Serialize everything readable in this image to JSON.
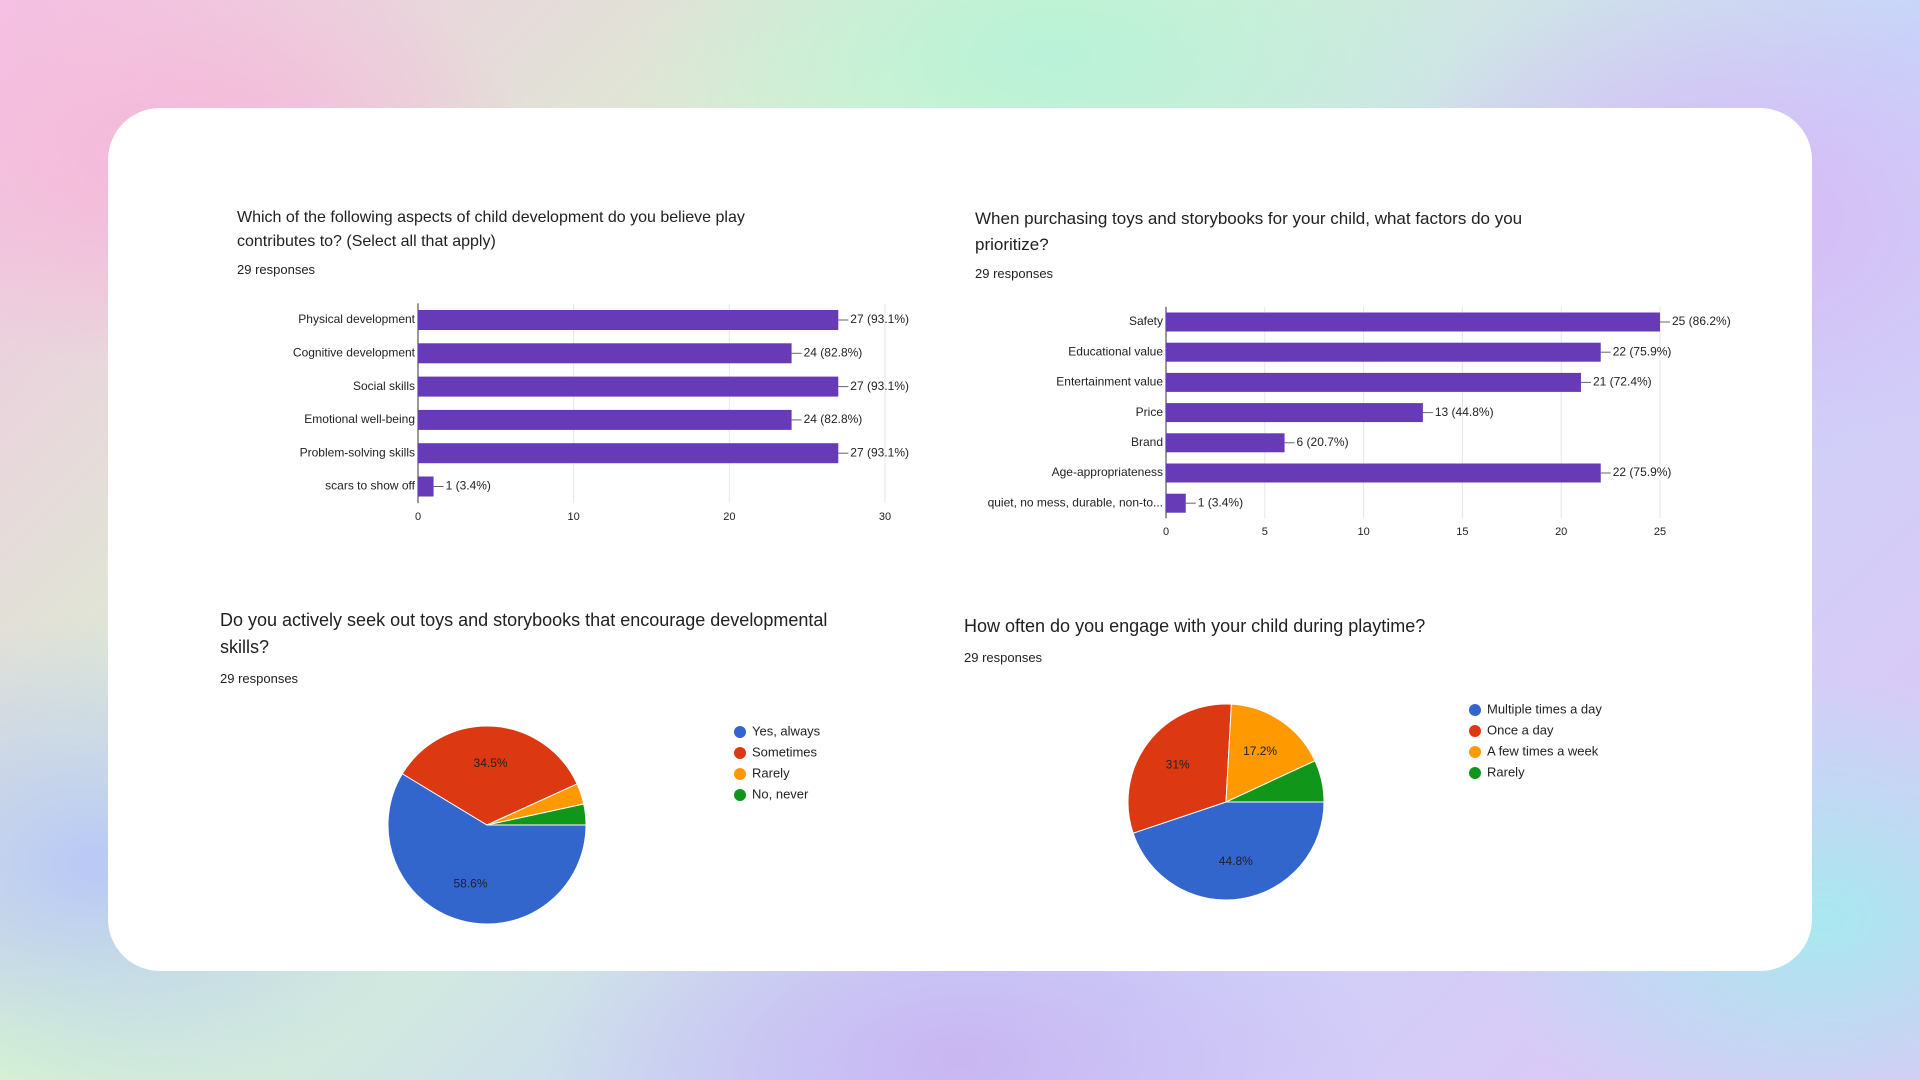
{
  "chart_data": [
    {
      "type": "bar",
      "title": "Which of the following aspects of child development do you believe play contributes to? (Select all that apply)",
      "subtitle": "29 responses",
      "categories": [
        "Physical development",
        "Cognitive development",
        "Social skills",
        "Emotional well-being",
        "Problem-solving skills",
        "scars to show off"
      ],
      "values": [
        27,
        24,
        27,
        24,
        27,
        1
      ],
      "value_labels": [
        "27 (93.1%)",
        "24 (82.8%)",
        "27 (93.1%)",
        "24 (82.8%)",
        "27 (93.1%)",
        "1 (3.4%)"
      ],
      "color": "#673ab7",
      "xlim": [
        0,
        30
      ],
      "xticks": [
        0,
        10,
        20,
        30
      ],
      "grid": true
    },
    {
      "type": "bar",
      "title": "When purchasing toys and storybooks for your child, what factors do you prioritize?",
      "subtitle": "29 responses",
      "categories": [
        "Safety",
        "Educational value",
        "Entertainment value",
        "Price",
        "Brand",
        "Age-appropriateness",
        "quiet, no mess, durable, non-to..."
      ],
      "values": [
        25,
        22,
        21,
        13,
        6,
        22,
        1
      ],
      "value_labels": [
        "25 (86.2%)",
        "22 (75.9%)",
        "21 (72.4%)",
        "13 (44.8%)",
        "6 (20.7%)",
        "22 (75.9%)",
        "1 (3.4%)"
      ],
      "color": "#673ab7",
      "xlim": [
        0,
        25
      ],
      "xticks": [
        0,
        5,
        10,
        15,
        20,
        25
      ],
      "grid": true
    },
    {
      "type": "pie",
      "title": "Do you actively seek out toys and storybooks that encourage developmental skills?",
      "subtitle": "29 responses",
      "categories": [
        "Yes, always",
        "Sometimes",
        "Rarely",
        "No, never"
      ],
      "values": [
        58.6,
        34.5,
        3.4,
        3.4
      ],
      "value_labels": [
        "58.6%",
        "34.5%",
        null,
        null
      ],
      "colors": [
        "#3366cc",
        "#dc3912",
        "#ff9900",
        "#109618"
      ]
    },
    {
      "type": "pie",
      "title": "How often do you engage with your child during playtime?",
      "subtitle": "29 responses",
      "categories": [
        "Multiple times a day",
        "Once a day",
        "A few times a week",
        "Rarely"
      ],
      "values": [
        44.8,
        31,
        17.2,
        6.9
      ],
      "value_labels": [
        "44.8%",
        "31%",
        "17.2%",
        null
      ],
      "colors": [
        "#3366cc",
        "#dc3912",
        "#ff9900",
        "#109618"
      ]
    }
  ]
}
